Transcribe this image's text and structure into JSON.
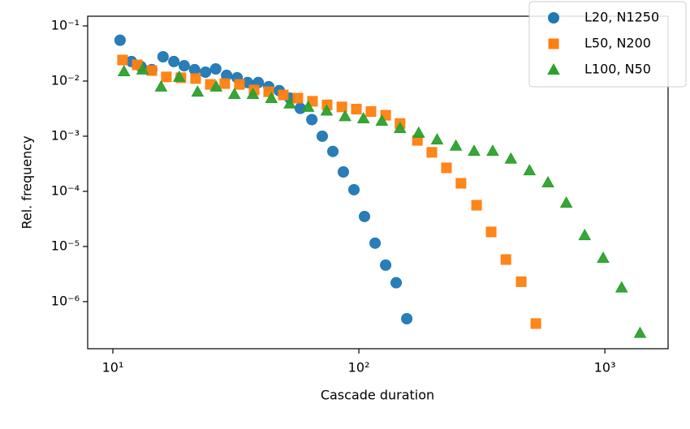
{
  "chart_data": {
    "type": "scatter",
    "xlabel": "Cascade duration",
    "ylabel": "Rel. frequency",
    "xscale": "log",
    "yscale": "log",
    "xlim": [
      7.9,
      1807
    ],
    "ylim": [
      1.4e-07,
      0.15
    ],
    "xticks": [
      {
        "value": 10,
        "label": "10¹"
      },
      {
        "value": 100,
        "label": "10²"
      },
      {
        "value": 1000,
        "label": "10³"
      }
    ],
    "yticks": [
      {
        "value": 1e-06,
        "label": "10⁻⁶"
      },
      {
        "value": 1e-05,
        "label": "10⁻⁵"
      },
      {
        "value": 0.0001,
        "label": "10⁻⁴"
      },
      {
        "value": 0.001,
        "label": "10⁻³"
      },
      {
        "value": 0.01,
        "label": "10⁻²"
      },
      {
        "value": 0.1,
        "label": "10⁻¹"
      }
    ],
    "legend": "upper right",
    "series": [
      {
        "name": "L20, N1250",
        "color": "#1f77b4",
        "marker": "circle",
        "x": [
          10.7,
          11.9,
          13.0,
          14.4,
          16.0,
          17.7,
          19.5,
          21.5,
          23.8,
          26.2,
          29.0,
          32.0,
          35.3,
          39.0,
          43.0,
          47.5,
          52.4,
          57.8,
          64.4,
          71.0,
          78.4,
          86.5,
          95.5,
          105.4,
          116.4,
          128.5,
          141.8,
          156.6
        ],
        "values": [
          0.055,
          0.0226,
          0.0184,
          0.0161,
          0.0276,
          0.0226,
          0.019,
          0.0161,
          0.0145,
          0.0166,
          0.0127,
          0.0115,
          0.0094,
          0.0094,
          0.0079,
          0.0067,
          0.0049,
          0.0032,
          0.002,
          0.001,
          0.00053,
          0.000225,
          0.000107,
          3.5e-05,
          1.15e-05,
          4.6e-06,
          2.2e-06,
          4.9e-07
        ]
      },
      {
        "name": "L50, N200",
        "color": "#ff7f0e",
        "marker": "square",
        "x": [
          10.95,
          12.56,
          14.4,
          16.5,
          18.9,
          21.7,
          24.9,
          28.5,
          32.7,
          37.5,
          43.0,
          49.3,
          56.5,
          64.8,
          74.3,
          85.3,
          97.7,
          112,
          128.5,
          147,
          173,
          198,
          227,
          260,
          301,
          345,
          396,
          457,
          524
        ],
        "values": [
          0.0241,
          0.0197,
          0.0155,
          0.0119,
          0.0115,
          0.0111,
          0.0087,
          0.009,
          0.0087,
          0.0069,
          0.0064,
          0.0056,
          0.0049,
          0.0043,
          0.0037,
          0.0034,
          0.0031,
          0.0028,
          0.0024,
          0.0017,
          0.00084,
          0.00051,
          0.000267,
          0.00014,
          5.6e-05,
          1.84e-05,
          5.8e-06,
          2.3e-06,
          4e-07
        ]
      },
      {
        "name": "L100, N50",
        "color": "#2ca02c",
        "marker": "triangle",
        "x": [
          11.1,
          13.2,
          15.7,
          18.6,
          22.1,
          26.3,
          31.2,
          37.1,
          44.1,
          52.4,
          62.2,
          74.0,
          87.9,
          104.4,
          124,
          147,
          175,
          208,
          248,
          294,
          350,
          415,
          494,
          587,
          697,
          828,
          984,
          1170,
          1390
        ],
        "values": [
          0.015,
          0.0161,
          0.0079,
          0.0119,
          0.0064,
          0.0079,
          0.0058,
          0.0058,
          0.0049,
          0.0039,
          0.0034,
          0.0029,
          0.0023,
          0.0021,
          0.0019,
          0.0014,
          0.00115,
          0.00087,
          0.00067,
          0.00054,
          0.00054,
          0.00039,
          0.00024,
          0.000145,
          6.2e-05,
          1.6e-05,
          6.2e-06,
          1.8e-06,
          2.7e-07
        ]
      }
    ]
  }
}
